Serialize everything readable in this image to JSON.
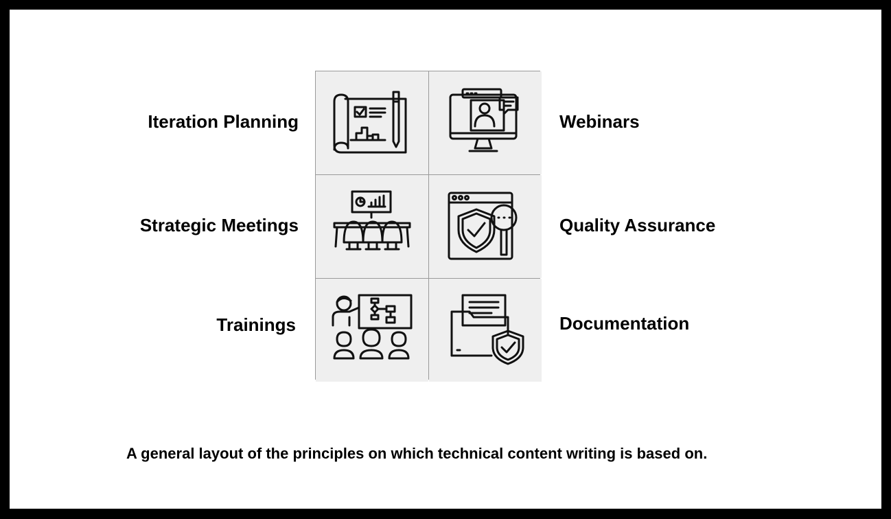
{
  "items": [
    {
      "label": "Iteration Planning",
      "icon": "blueprint-plan-icon",
      "side": "left"
    },
    {
      "label": "Webinars",
      "icon": "webinar-monitor-icon",
      "side": "right"
    },
    {
      "label": "Strategic Meetings",
      "icon": "meeting-room-icon",
      "side": "left"
    },
    {
      "label": "Quality Assurance",
      "icon": "quality-shield-icon",
      "side": "right"
    },
    {
      "label": "Trainings",
      "icon": "training-presentation-icon",
      "side": "left"
    },
    {
      "label": "Documentation",
      "icon": "secure-folder-icon",
      "side": "right"
    }
  ],
  "caption": "A general layout of the principles on which technical content writing is based on."
}
